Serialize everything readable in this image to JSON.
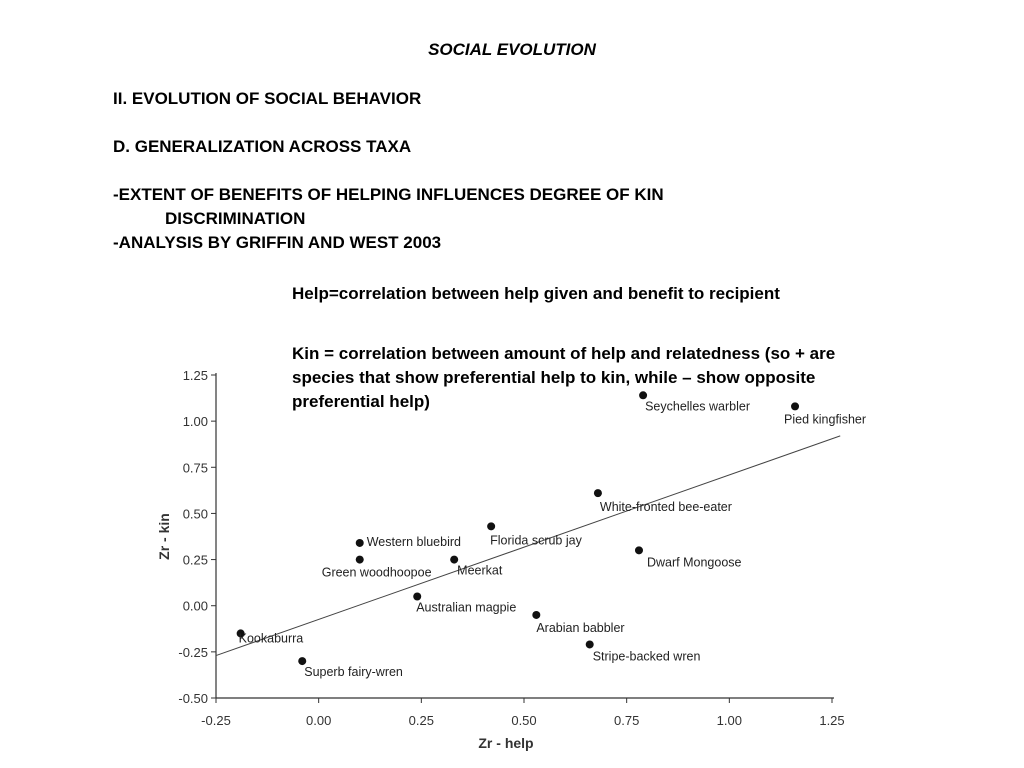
{
  "slide": {
    "title": "SOCIAL EVOLUTION",
    "section": "II. EVOLUTION OF SOCIAL BEHAVIOR",
    "subsection": "D. GENERALIZATION ACROSS TAXA",
    "bullet1_line1": "-EXTENT OF BENEFITS OF HELPING INFLUENCES DEGREE OF KIN",
    "bullet1_line2": "DISCRIMINATION",
    "bullet2": "-ANALYSIS BY GRIFFIN AND WEST 2003",
    "note_help": "Help=correlation between help given and benefit to recipient",
    "note_kin": "Kin = correlation between amount of help and relatedness (so + are species that show preferential help to kin, while – show opposite preferential help)"
  },
  "chart_data": {
    "type": "scatter",
    "xlabel": "Zr - help",
    "ylabel": "Zr - kin",
    "xlim": [
      -0.25,
      1.25
    ],
    "ylim": [
      -0.5,
      1.25
    ],
    "xticks": [
      "-0.25",
      "0.00",
      "0.25",
      "0.50",
      "0.75",
      "1.00",
      "1.25"
    ],
    "yticks": [
      "1.25",
      "1.00",
      "0.75",
      "0.50",
      "0.25",
      "0.00",
      "-0.25",
      "-0.50"
    ],
    "grid": false,
    "trendline": {
      "x1": -0.25,
      "y1": -0.27,
      "x2": 1.27,
      "y2": 0.92
    },
    "points": [
      {
        "label": "Seychelles warbler",
        "x": 0.79,
        "y": 1.14
      },
      {
        "label": "Pied kingfisher",
        "x": 1.16,
        "y": 1.08
      },
      {
        "label": "White-fronted bee-eater",
        "x": 0.68,
        "y": 0.61
      },
      {
        "label": "Florida scrub jay",
        "x": 0.42,
        "y": 0.43
      },
      {
        "label": "Western bluebird",
        "x": 0.1,
        "y": 0.34
      },
      {
        "label": "Green woodhoopoe",
        "x": 0.1,
        "y": 0.25
      },
      {
        "label": "Meerkat",
        "x": 0.33,
        "y": 0.25
      },
      {
        "label": "Dwarf Mongoose",
        "x": 0.78,
        "y": 0.3
      },
      {
        "label": "Australian magpie",
        "x": 0.24,
        "y": 0.05
      },
      {
        "label": "Arabian babbler",
        "x": 0.53,
        "y": -0.05
      },
      {
        "label": "Kookaburra",
        "x": -0.19,
        "y": -0.15
      },
      {
        "label": "Stripe-backed wren",
        "x": 0.66,
        "y": -0.21
      },
      {
        "label": "Superb fairy-wren",
        "x": -0.04,
        "y": -0.3
      }
    ]
  }
}
